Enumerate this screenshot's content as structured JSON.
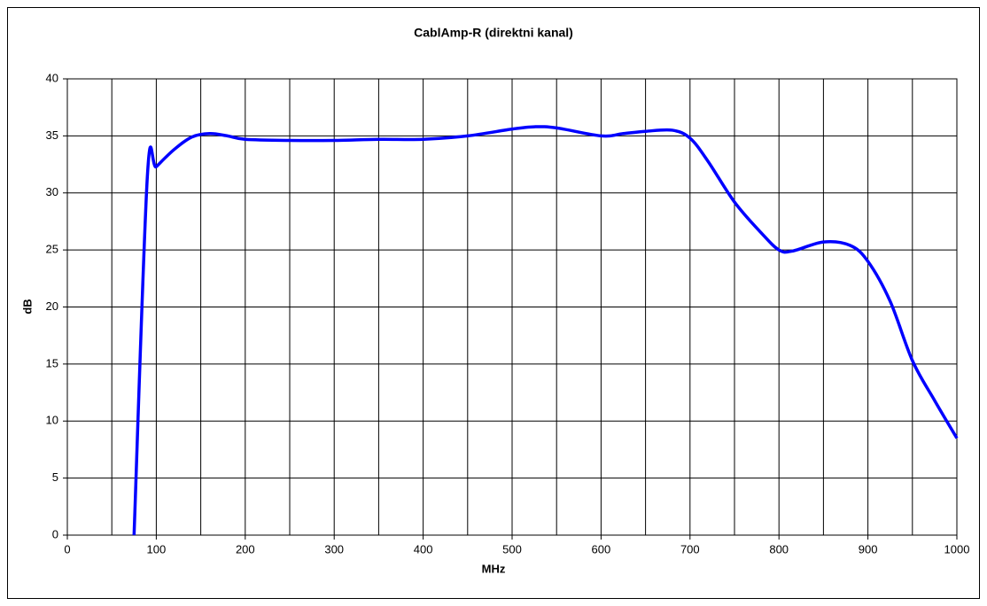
{
  "chart_data": {
    "type": "line",
    "title": "CablAmp-R (direktni kanal)",
    "xlabel": "MHz",
    "ylabel": "dB",
    "x": [
      75,
      90,
      100,
      120,
      140,
      160,
      180,
      200,
      250,
      300,
      350,
      400,
      450,
      500,
      525,
      550,
      600,
      625,
      650,
      680,
      700,
      720,
      750,
      780,
      800,
      815,
      850,
      880,
      900,
      925,
      950,
      975,
      1000
    ],
    "series": [
      {
        "name": "CablAmp-R",
        "color": "#0000ff",
        "values": [
          0,
          31.5,
          32.3,
          33.8,
          34.9,
          35.2,
          35.0,
          34.7,
          34.6,
          34.6,
          34.7,
          34.7,
          35.0,
          35.6,
          35.8,
          35.7,
          35.0,
          35.2,
          35.4,
          35.5,
          34.8,
          32.8,
          29.2,
          26.5,
          25.0,
          24.9,
          25.7,
          25.4,
          24.0,
          20.5,
          15.3,
          11.8,
          8.5
        ]
      }
    ],
    "xlim": [
      0,
      1000
    ],
    "xticks": [
      0,
      100,
      200,
      300,
      400,
      500,
      600,
      700,
      800,
      900,
      1000
    ],
    "xminorticks": [
      50,
      150,
      250,
      350,
      450,
      550,
      650,
      750,
      850,
      950
    ],
    "ylim": [
      0,
      40
    ],
    "yticks": [
      0,
      5,
      10,
      15,
      20,
      25,
      30,
      35,
      40
    ],
    "grid": true,
    "legend": false
  }
}
